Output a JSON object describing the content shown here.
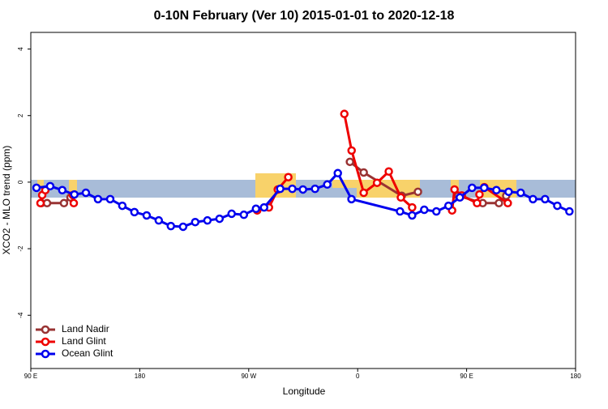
{
  "chart_data": {
    "type": "line",
    "title": "0-10N February (Ver 10)   2015-01-01 to 2020-12-18",
    "x_label": "Longitude",
    "y_label": "XCO2 - MLO trend (ppm)",
    "xlim": [
      90,
      540
    ],
    "xticks": [
      {
        "value": 90,
        "label": "90 E"
      },
      180,
      {
        "value": 270,
        "label": "90 W"
      },
      {
        "value": 360,
        "label": "0"
      },
      {
        "value": 450,
        "label": "90 E"
      },
      540
    ],
    "xtick_labels_print_180_for_540": true,
    "ylim": [
      -5.6,
      4.5
    ],
    "yticks": [
      -4,
      -2,
      0,
      2,
      4
    ],
    "legend": "bottom-left",
    "series": [
      {
        "name": "Land Nadir",
        "color": "#993333",
        "x": [
          98.7,
          103.4,
          117.4,
          122.8,
          null,
          353.6,
          365,
          396.4,
          409.8,
          null,
          443,
          463.3,
          476.7,
          482.7
        ],
        "values": [
          -0.63,
          -0.63,
          -0.63,
          -0.46,
          null,
          0.61,
          0.29,
          -0.41,
          -0.29,
          null,
          -0.41,
          -0.63,
          -0.63,
          -0.41
        ]
      },
      {
        "name": "Land Glint",
        "color": "#ee0000",
        "x": [
          98,
          99.4,
          102,
          null,
          124.8,
          125.5,
          null,
          277,
          286.7,
          294,
          302.7,
          null,
          349,
          355,
          365,
          376,
          385.7,
          395.7,
          405,
          null,
          438,
          440,
          446,
          458.6,
          460.6,
          464.6,
          484
        ],
        "values": [
          -0.63,
          -0.39,
          -0.24,
          null,
          -0.39,
          -0.63,
          null,
          -0.85,
          -0.76,
          -0.22,
          0.15,
          null,
          2.05,
          0.95,
          -0.32,
          -0.02,
          0.32,
          -0.46,
          -0.76,
          null,
          -0.85,
          -0.22,
          -0.4,
          -0.63,
          -0.37,
          -0.15,
          -0.63
        ]
      },
      {
        "name": "Ocean Glint",
        "color": "#0000ee",
        "x": [
          94.7,
          106,
          116,
          126,
          135.5,
          145.5,
          155.6,
          165.6,
          175.6,
          185.7,
          195.7,
          205.7,
          215.8,
          225.8,
          235.9,
          245.9,
          255.9,
          266,
          276,
          282.7,
          296,
          306,
          314.8,
          324.8,
          334.9,
          343.6,
          354.9,
          395,
          405,
          415,
          425,
          435,
          444.4,
          454.5,
          464.5,
          474.6,
          484.7,
          494.7,
          504.8,
          514.8,
          524.9,
          534.9
        ],
        "values": [
          -0.17,
          -0.12,
          -0.24,
          -0.37,
          -0.32,
          -0.51,
          -0.51,
          -0.71,
          -0.9,
          -1.0,
          -1.15,
          -1.32,
          -1.34,
          -1.2,
          -1.15,
          -1.1,
          -0.95,
          -0.98,
          -0.8,
          -0.76,
          -0.2,
          -0.2,
          -0.22,
          -0.2,
          -0.07,
          0.27,
          -0.51,
          -0.88,
          -1.0,
          -0.83,
          -0.88,
          -0.71,
          -0.46,
          -0.17,
          -0.17,
          -0.24,
          -0.29,
          -0.32,
          -0.51,
          -0.51,
          -0.71,
          -0.88
        ]
      }
    ]
  }
}
